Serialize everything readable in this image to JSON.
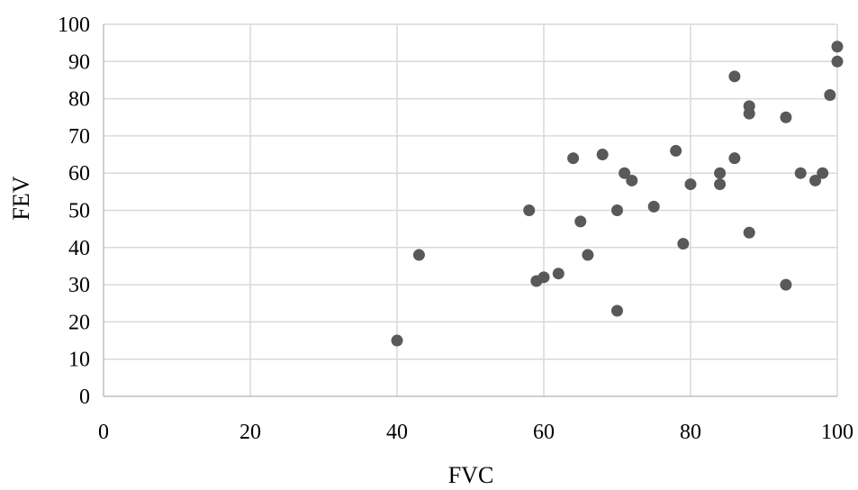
{
  "chart_data": {
    "type": "scatter",
    "title": "",
    "xlabel": "FVC",
    "ylabel": "FEV",
    "xlim": [
      0,
      100
    ],
    "ylim": [
      0,
      100
    ],
    "xticks": [
      0,
      20,
      40,
      60,
      80,
      100
    ],
    "yticks": [
      0,
      10,
      20,
      30,
      40,
      50,
      60,
      70,
      80,
      90,
      100
    ],
    "grid": true,
    "legend": "none",
    "colors": {
      "marker": "#595959",
      "grid": "#d9d9d9",
      "axis": "#bfbfbf"
    },
    "series": [
      {
        "points": [
          [
            40,
            15
          ],
          [
            43,
            38
          ],
          [
            58,
            50
          ],
          [
            59,
            31
          ],
          [
            60,
            32
          ],
          [
            62,
            33
          ],
          [
            64,
            64
          ],
          [
            65,
            47
          ],
          [
            66,
            38
          ],
          [
            68,
            65
          ],
          [
            70,
            50
          ],
          [
            70,
            23
          ],
          [
            71,
            60
          ],
          [
            72,
            58
          ],
          [
            75,
            51
          ],
          [
            78,
            66
          ],
          [
            79,
            41
          ],
          [
            80,
            57
          ],
          [
            84,
            60
          ],
          [
            84,
            57
          ],
          [
            86,
            86
          ],
          [
            86,
            64
          ],
          [
            88,
            78
          ],
          [
            88,
            76
          ],
          [
            88,
            44
          ],
          [
            93,
            75
          ],
          [
            93,
            30
          ],
          [
            95,
            60
          ],
          [
            97,
            58
          ],
          [
            98,
            60
          ],
          [
            99,
            81
          ],
          [
            100,
            94
          ],
          [
            100,
            90
          ]
        ]
      }
    ]
  }
}
